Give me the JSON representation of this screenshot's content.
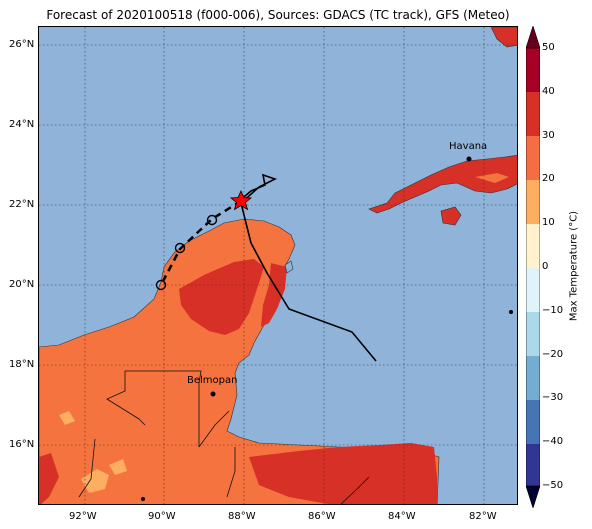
{
  "title": "Forecast of 2020100518 (f000-006), Sources: GDACS (TC track), GFS (Meteo)",
  "map": {
    "lat_ticks": [
      "26°N",
      "24°N",
      "22°N",
      "20°N",
      "18°N",
      "16°N"
    ],
    "lon_ticks": [
      "92°W",
      "90°W",
      "88°W",
      "86°W",
      "84°W",
      "82°W"
    ],
    "cities": [
      {
        "name": "Havana"
      },
      {
        "name": "Belmopan"
      }
    ],
    "colors": {
      "ocean": "#8fb3d9",
      "temp_20_30": "#f4733f",
      "temp_30_40": "#d73027",
      "temp_10_20": "#fdae61",
      "track": "#000000",
      "current_position": "#ff0000"
    }
  },
  "colorbar": {
    "label": "Max Temperature (°C)",
    "ticks": [
      "50",
      "40",
      "30",
      "20",
      "10",
      "0",
      "−10",
      "−20",
      "−30",
      "−40",
      "−50"
    ]
  }
}
